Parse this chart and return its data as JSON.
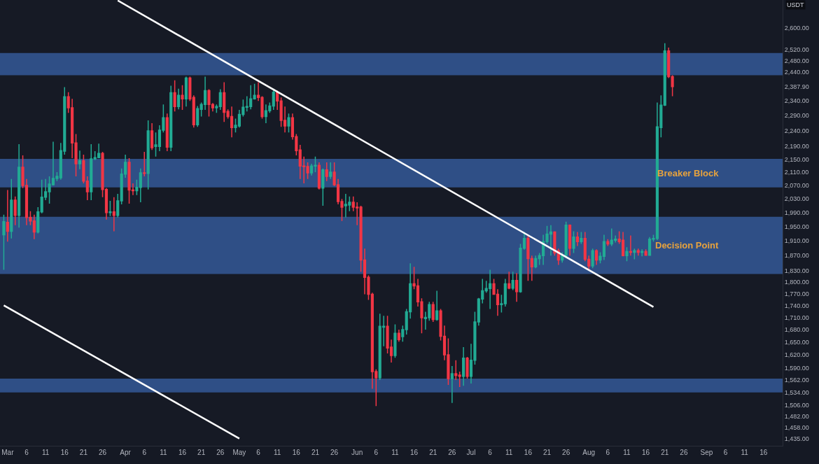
{
  "chart_data": {
    "type": "candlestick",
    "ylabel": "USDT",
    "log": "y",
    "xlim": [
      "--02-27",
      "--09-21"
    ],
    "xticks": [
      {
        "value": "--03-01",
        "label": "Mar"
      },
      {
        "value": "--03-06",
        "label": "6"
      },
      {
        "value": "--03-11",
        "label": "11"
      },
      {
        "value": "--03-16",
        "label": "16"
      },
      {
        "value": "--03-21",
        "label": "21"
      },
      {
        "value": "--03-26",
        "label": "26"
      },
      {
        "value": "--04-01",
        "label": "Apr"
      },
      {
        "value": "--04-06",
        "label": "6"
      },
      {
        "value": "--04-11",
        "label": "11"
      },
      {
        "value": "--04-16",
        "label": "16"
      },
      {
        "value": "--04-21",
        "label": "21"
      },
      {
        "value": "--04-26",
        "label": "26"
      },
      {
        "value": "--05-01",
        "label": "May"
      },
      {
        "value": "--05-06",
        "label": "6"
      },
      {
        "value": "--05-11",
        "label": "11"
      },
      {
        "value": "--05-16",
        "label": "16"
      },
      {
        "value": "--05-21",
        "label": "21"
      },
      {
        "value": "--05-26",
        "label": "26"
      },
      {
        "value": "--06-01",
        "label": "Jun"
      },
      {
        "value": "--06-06",
        "label": "6"
      },
      {
        "value": "--06-11",
        "label": "11"
      },
      {
        "value": "--06-16",
        "label": "16"
      },
      {
        "value": "--06-21",
        "label": "21"
      },
      {
        "value": "--06-26",
        "label": "26"
      },
      {
        "value": "--07-01",
        "label": "Jul"
      },
      {
        "value": "--07-06",
        "label": "6"
      },
      {
        "value": "--07-11",
        "label": "11"
      },
      {
        "value": "--07-16",
        "label": "16"
      },
      {
        "value": "--07-21",
        "label": "21"
      },
      {
        "value": "--07-26",
        "label": "26"
      },
      {
        "value": "--08-01",
        "label": "Aug"
      },
      {
        "value": "--08-06",
        "label": "6"
      },
      {
        "value": "--08-11",
        "label": "11"
      },
      {
        "value": "--08-16",
        "label": "16"
      },
      {
        "value": "--08-21",
        "label": "21"
      },
      {
        "value": "--08-26",
        "label": "26"
      },
      {
        "value": "--09-01",
        "label": "Sep"
      },
      {
        "value": "--09-06",
        "label": "6"
      },
      {
        "value": "--09-11",
        "label": "11"
      },
      {
        "value": "--09-16",
        "label": "16"
      }
    ],
    "ylim": [
      1420,
      2707
    ],
    "yticks": [
      {
        "value": 2600,
        "label": "2,600.00"
      },
      {
        "value": 2520,
        "label": "2,520.00"
      },
      {
        "value": 2480,
        "label": "2,480.00"
      },
      {
        "value": 2440,
        "label": "2,440.00"
      },
      {
        "value": 2387.9,
        "label": "2,387.90"
      },
      {
        "value": 2340,
        "label": "2,340.00"
      },
      {
        "value": 2290,
        "label": "2,290.00"
      },
      {
        "value": 2240,
        "label": "2,240.00"
      },
      {
        "value": 2190,
        "label": "2,190.00"
      },
      {
        "value": 2150,
        "label": "2,150.00"
      },
      {
        "value": 2110,
        "label": "2,110.00"
      },
      {
        "value": 2070,
        "label": "2,070.00"
      },
      {
        "value": 2030,
        "label": "2,030.00"
      },
      {
        "value": 1990,
        "label": "1,990.00"
      },
      {
        "value": 1950,
        "label": "1,950.00"
      },
      {
        "value": 1910,
        "label": "1,910.00"
      },
      {
        "value": 1870,
        "label": "1,870.00"
      },
      {
        "value": 1830,
        "label": "1,830.00"
      },
      {
        "value": 1800,
        "label": "1,800.00"
      },
      {
        "value": 1770,
        "label": "1,770.00"
      },
      {
        "value": 1740,
        "label": "1,740.00"
      },
      {
        "value": 1710,
        "label": "1,710.00"
      },
      {
        "value": 1680,
        "label": "1,680.00"
      },
      {
        "value": 1650,
        "label": "1,650.00"
      },
      {
        "value": 1620,
        "label": "1,620.00"
      },
      {
        "value": 1590,
        "label": "1,590.00"
      },
      {
        "value": 1562,
        "label": "1,562.00"
      },
      {
        "value": 1534,
        "label": "1,534.00"
      },
      {
        "value": 1506,
        "label": "1,506.00"
      },
      {
        "value": 1482,
        "label": "1,482.00"
      },
      {
        "value": 1458,
        "label": "1,458.00"
      },
      {
        "value": 1435,
        "label": "1,435.00"
      }
    ],
    "bands": [
      {
        "axis": "y",
        "from": 2428,
        "to": 2507,
        "color": "#2f4f86"
      },
      {
        "axis": "y",
        "from": 2064,
        "to": 2151,
        "label": "Breaker Block",
        "color": "#2f4f86"
      },
      {
        "axis": "y",
        "from": 1821,
        "to": 1978,
        "label": "Decision Point",
        "color": "#2f4f86"
      },
      {
        "axis": "y",
        "from": 1534,
        "to": 1565,
        "color": "#2f4f86"
      }
    ],
    "series": [
      {
        "type": "candlestick",
        "colors": [
          "#22ab94",
          "#f23645",
          "#22ab94",
          "#f23645",
          "#22ab94",
          "#f23645",
          "#f23645",
          "#f23645",
          "#f23645",
          "#22ab94",
          "#22ab94",
          "#22ab94",
          "#22ab94",
          "#22ab94",
          "#22ab94",
          "#22ab94",
          "#22ab94",
          "#f23645",
          "#f23645",
          "#f23645",
          "#22ab94",
          "#f23645",
          "#f23645",
          "#22ab94",
          "#22ab94",
          "#22ab94",
          "#f23645",
          "#f23645",
          "#22ab94",
          "#f23645",
          "#22ab94",
          "#22ab94",
          "#22ab94",
          "#f23645",
          "#f23645",
          "#22ab94",
          "#22ab94",
          "#f23645",
          "#22ab94",
          "#f23645",
          "#22ab94",
          "#22ab94",
          "#22ab94",
          "#f23645",
          "#22ab94",
          "#f23645",
          "#22ab94",
          "#f23645",
          "#22ab94",
          "#f23645",
          "#f23645",
          "#22ab94",
          "#22ab94",
          "#22ab94",
          "#f23645",
          "#f23645",
          "#22ab94",
          "#22ab94",
          "#f23645",
          "#f23645",
          "#f23645",
          "#22ab94",
          "#22ab94",
          "#22ab94",
          "#22ab94",
          "#22ab94",
          "#22ab94",
          "#f23645",
          "#f23645",
          "#22ab94",
          "#22ab94",
          "#22ab94",
          "#f23645",
          "#f23645",
          "#f23645",
          "#22ab94",
          "#f23645",
          "#f23645",
          "#f23645",
          "#f23645",
          "#f23645",
          "#22ab94",
          "#22ab94",
          "#f23645",
          "#22ab94",
          "#f23645",
          "#22ab94",
          "#f23645",
          "#f23645",
          "#f23645",
          "#22ab94",
          "#22ab94",
          "#f23645",
          "#f23645",
          "#f23645",
          "#f23645",
          "#f23645",
          "#f23645",
          "#f23645",
          "#22ab94",
          "#22ab94",
          "#f23645",
          "#f23645",
          "#22ab94",
          "#f23645",
          "#22ab94",
          "#22ab94",
          "#22ab94",
          "#f23645",
          "#f23645",
          "#f23645",
          "#22ab94",
          "#22ab94",
          "#f23645",
          "#22ab94",
          "#f23645",
          "#f23645",
          "#f23645",
          "#22ab94",
          "#f23645",
          "#f23645",
          "#22ab94",
          "#f23645",
          "#22ab94",
          "#22ab94",
          "#22ab94",
          "#22ab94",
          "#22ab94",
          "#22ab94",
          "#f23645",
          "#f23645",
          "#22ab94",
          "#22ab94",
          "#f23645",
          "#22ab94",
          "#f23645",
          "#22ab94",
          "#22ab94",
          "#f23645",
          "#f23645",
          "#22ab94",
          "#22ab94",
          "#22ab94",
          "#22ab94",
          "#22ab94",
          "#f23645",
          "#f23645",
          "#22ab94",
          "#22ab94",
          "#f23645",
          "#22ab94",
          "#f23645",
          "#22ab94",
          "#f23645",
          "#f23645",
          "#22ab94",
          "#f23645",
          "#22ab94",
          "#22ab94",
          "#f23645",
          "#22ab94",
          "#22ab94",
          "#f23645",
          "#f23645",
          "#22ab94",
          "#f23645",
          "#22ab94",
          "#f23645",
          "#22ab94",
          "#f23645",
          "#22ab94",
          "#22ab94",
          "#22ab94",
          "#22ab94",
          "#22ab94",
          "#f23645",
          "#f23645"
        ],
        "x": [
          "--02-28",
          "--03-01",
          "--03-02",
          "--03-03",
          "--03-04",
          "--03-05",
          "--03-06",
          "--03-07",
          "--03-08",
          "--03-09",
          "--03-10",
          "--03-11",
          "--03-12",
          "--03-13",
          "--03-14",
          "--03-15",
          "--03-16",
          "--03-17",
          "--03-18",
          "--03-19",
          "--03-20",
          "--03-21",
          "--03-22",
          "--03-23",
          "--03-24",
          "--03-25",
          "--03-26",
          "--03-27",
          "--03-28",
          "--03-29",
          "--03-30",
          "--03-31",
          "--04-01",
          "--04-02",
          "--04-03",
          "--04-04",
          "--04-05",
          "--04-06",
          "--04-07",
          "--04-08",
          "--04-09",
          "--04-10",
          "--04-11",
          "--04-12",
          "--04-13",
          "--04-14",
          "--04-15",
          "--04-16",
          "--04-17",
          "--04-18",
          "--04-19",
          "--04-20",
          "--04-21",
          "--04-22",
          "--04-23",
          "--04-24",
          "--04-25",
          "--04-26",
          "--04-27",
          "--04-28",
          "--04-29",
          "--04-30",
          "--05-01",
          "--05-02",
          "--05-03",
          "--05-04",
          "--05-05",
          "--05-06",
          "--05-07",
          "--05-08",
          "--05-09",
          "--05-10",
          "--05-11",
          "--05-12",
          "--05-13",
          "--05-14",
          "--05-15",
          "--05-16",
          "--05-17",
          "--05-18",
          "--05-19",
          "--05-20",
          "--05-21",
          "--05-22",
          "--05-23",
          "--05-24",
          "--05-25",
          "--05-26",
          "--05-27",
          "--05-28",
          "--05-29",
          "--05-30",
          "--05-31",
          "--06-01",
          "--06-02",
          "--06-03",
          "--06-04",
          "--06-05",
          "--06-06",
          "--06-07",
          "--06-08",
          "--06-09",
          "--06-10",
          "--06-11",
          "--06-12",
          "--06-13",
          "--06-14",
          "--06-15",
          "--06-16",
          "--06-17",
          "--06-18",
          "--06-19",
          "--06-20",
          "--06-21",
          "--06-22",
          "--06-23",
          "--06-24",
          "--06-25",
          "--06-26",
          "--06-27",
          "--06-28",
          "--06-29",
          "--06-30",
          "--07-01",
          "--07-02",
          "--07-03",
          "--07-04",
          "--07-05",
          "--07-06",
          "--07-07",
          "--07-08",
          "--07-09",
          "--07-10",
          "--07-11",
          "--07-12",
          "--07-13",
          "--07-14",
          "--07-15",
          "--07-16",
          "--07-17",
          "--07-18",
          "--07-19",
          "--07-20",
          "--07-21",
          "--07-22",
          "--07-23",
          "--07-24",
          "--07-25",
          "--07-26",
          "--07-27",
          "--07-28",
          "--07-29",
          "--07-30",
          "--07-31",
          "--08-01",
          "--08-02",
          "--08-03",
          "--08-04",
          "--08-05",
          "--08-06",
          "--08-07",
          "--08-08",
          "--08-09",
          "--08-10",
          "--08-11",
          "--08-12",
          "--08-13",
          "--08-14",
          "--08-15",
          "--08-16",
          "--08-17",
          "--08-18",
          "--08-19",
          "--08-20",
          "--08-21",
          "--08-22",
          "--08-23"
        ],
        "ohlc": [
          [
            1927,
            1984,
            1832,
            1964
          ],
          [
            1962,
            2056,
            1908,
            1937
          ],
          [
            1937,
            2089,
            1917,
            2026
          ],
          [
            2026,
            2037,
            1954,
            1982
          ],
          [
            1982,
            2197,
            1947,
            2125
          ],
          [
            2125,
            2162,
            2062,
            2070
          ],
          [
            2070,
            2089,
            1954,
            1976
          ],
          [
            1976,
            1994,
            1954,
            1966
          ],
          [
            1966,
            1984,
            1915,
            1935
          ],
          [
            1935,
            2006,
            1931,
            1992
          ],
          [
            1992,
            2087,
            1988,
            2035
          ],
          [
            2035,
            2089,
            2026,
            2051
          ],
          [
            2051,
            2097,
            2016,
            2074
          ],
          [
            2072,
            2205,
            2070,
            2091
          ],
          [
            2091,
            2110,
            2083,
            2097
          ],
          [
            2093,
            2201,
            2087,
            2177
          ],
          [
            2175,
            2386,
            2164,
            2353
          ],
          [
            2353,
            2369,
            2299,
            2316
          ],
          [
            2316,
            2346,
            2153,
            2201
          ],
          [
            2201,
            2230,
            2097,
            2136
          ],
          [
            2136,
            2177,
            2119,
            2145
          ],
          [
            2145,
            2164,
            2076,
            2083
          ],
          [
            2083,
            2097,
            2026,
            2051
          ],
          [
            2051,
            2197,
            2026,
            2151
          ],
          [
            2151,
            2175,
            2147,
            2155
          ],
          [
            2155,
            2199,
            2153,
            2168
          ],
          [
            2168,
            2173,
            2035,
            2058
          ],
          [
            2058,
            2062,
            1970,
            1990
          ],
          [
            1990,
            2024,
            1980,
            1992
          ],
          [
            1992,
            2035,
            1937,
            1982
          ],
          [
            1982,
            2045,
            1976,
            2024
          ],
          [
            2024,
            2121,
            2014,
            2104
          ],
          [
            2104,
            2164,
            2093,
            2140
          ],
          [
            2140,
            2153,
            2016,
            2056
          ],
          [
            2056,
            2076,
            2041,
            2054
          ],
          [
            2054,
            2087,
            2041,
            2064
          ],
          [
            2064,
            2121,
            2020,
            2108
          ],
          [
            2108,
            2173,
            2097,
            2106
          ],
          [
            2106,
            2274,
            2058,
            2240
          ],
          [
            2240,
            2265,
            2179,
            2186
          ],
          [
            2190,
            2235,
            2158,
            2195
          ],
          [
            2190,
            2258,
            2175,
            2242
          ],
          [
            2242,
            2327,
            2235,
            2283
          ],
          [
            2283,
            2297,
            2175,
            2188
          ],
          [
            2188,
            2391,
            2175,
            2367
          ],
          [
            2367,
            2410,
            2304,
            2320
          ],
          [
            2320,
            2381,
            2311,
            2358
          ],
          [
            2358,
            2393,
            2309,
            2346
          ],
          [
            2346,
            2423,
            2320,
            2418
          ],
          [
            2418,
            2423,
            2339,
            2346
          ],
          [
            2351,
            2358,
            2251,
            2260
          ],
          [
            2260,
            2322,
            2253,
            2313
          ],
          [
            2311,
            2334,
            2287,
            2327
          ],
          [
            2327,
            2423,
            2309,
            2374
          ],
          [
            2374,
            2379,
            2287,
            2327
          ],
          [
            2327,
            2332,
            2304,
            2316
          ],
          [
            2316,
            2327,
            2299,
            2320
          ],
          [
            2320,
            2379,
            2309,
            2367
          ],
          [
            2367,
            2403,
            2269,
            2301
          ],
          [
            2304,
            2311,
            2280,
            2287
          ],
          [
            2287,
            2320,
            2219,
            2251
          ],
          [
            2251,
            2280,
            2235,
            2258
          ],
          [
            2256,
            2309,
            2251,
            2294
          ],
          [
            2294,
            2344,
            2287,
            2318
          ],
          [
            2318,
            2355,
            2304,
            2320
          ],
          [
            2320,
            2393,
            2311,
            2346
          ],
          [
            2346,
            2398,
            2344,
            2358
          ],
          [
            2358,
            2403,
            2339,
            2351
          ],
          [
            2351,
            2355,
            2280,
            2287
          ],
          [
            2287,
            2327,
            2265,
            2306
          ],
          [
            2306,
            2334,
            2299,
            2322
          ],
          [
            2322,
            2381,
            2309,
            2369
          ],
          [
            2369,
            2374,
            2309,
            2339
          ],
          [
            2339,
            2351,
            2253,
            2274
          ],
          [
            2274,
            2320,
            2235,
            2256
          ],
          [
            2256,
            2297,
            2235,
            2283
          ],
          [
            2283,
            2297,
            2212,
            2221
          ],
          [
            2221,
            2230,
            2162,
            2177
          ],
          [
            2179,
            2195,
            2089,
            2129
          ],
          [
            2129,
            2158,
            2076,
            2127
          ],
          [
            2127,
            2140,
            2089,
            2108
          ],
          [
            2108,
            2136,
            2100,
            2129
          ],
          [
            2129,
            2158,
            2110,
            2131
          ],
          [
            2131,
            2140,
            2058,
            2062
          ],
          [
            2062,
            2121,
            2010,
            2117
          ],
          [
            2117,
            2140,
            2083,
            2097
          ],
          [
            2097,
            2140,
            2089,
            2110
          ],
          [
            2110,
            2140,
            2068,
            2072
          ],
          [
            2072,
            2089,
            2014,
            2022
          ],
          [
            2022,
            2030,
            1966,
            2006
          ],
          [
            2010,
            2045,
            1976,
            2014
          ],
          [
            2012,
            2037,
            1994,
            2020
          ],
          [
            2020,
            2037,
            1994,
            2006
          ],
          [
            2006,
            2020,
            1954,
            2004
          ],
          [
            2006,
            2010,
            1827,
            1858
          ],
          [
            1858,
            1889,
            1768,
            1812
          ],
          [
            1812,
            1817,
            1754,
            1768
          ],
          [
            1768,
            1772,
            1542,
            1581
          ],
          [
            1581,
            1586,
            1504,
            1567
          ],
          [
            1567,
            1719,
            1562,
            1688
          ],
          [
            1686,
            1714,
            1640,
            1688
          ],
          [
            1688,
            1714,
            1623,
            1636
          ],
          [
            1638,
            1656,
            1602,
            1618
          ],
          [
            1618,
            1693,
            1613,
            1671
          ],
          [
            1671,
            1680,
            1651,
            1656
          ],
          [
            1663,
            1690,
            1651,
            1680
          ],
          [
            1680,
            1731,
            1668,
            1724
          ],
          [
            1724,
            1849,
            1707,
            1795
          ],
          [
            1795,
            1840,
            1781,
            1790
          ],
          [
            1790,
            1808,
            1737,
            1749
          ],
          [
            1749,
            1758,
            1671,
            1709
          ],
          [
            1707,
            1724,
            1680,
            1710
          ],
          [
            1709,
            1749,
            1702,
            1742
          ],
          [
            1742,
            1749,
            1699,
            1705
          ],
          [
            1705,
            1777,
            1702,
            1726
          ],
          [
            1726,
            1731,
            1654,
            1664
          ],
          [
            1664,
            1690,
            1607,
            1620
          ],
          [
            1620,
            1659,
            1551,
            1565
          ],
          [
            1565,
            1594,
            1511,
            1576
          ],
          [
            1576,
            1607,
            1562,
            1572
          ],
          [
            1573,
            1581,
            1546,
            1570
          ],
          [
            1570,
            1638,
            1549,
            1612
          ],
          [
            1612,
            1615,
            1565,
            1570
          ],
          [
            1570,
            1646,
            1554,
            1607
          ],
          [
            1607,
            1724,
            1597,
            1699
          ],
          [
            1699,
            1759,
            1690,
            1756
          ],
          [
            1756,
            1808,
            1745,
            1777
          ],
          [
            1777,
            1803,
            1772,
            1783
          ],
          [
            1783,
            1832,
            1731,
            1795
          ],
          [
            1795,
            1808,
            1767,
            1768
          ],
          [
            1768,
            1781,
            1714,
            1742
          ],
          [
            1742,
            1767,
            1722,
            1744
          ],
          [
            1744,
            1808,
            1737,
            1795
          ],
          [
            1795,
            1827,
            1781,
            1784
          ],
          [
            1784,
            1827,
            1779,
            1804
          ],
          [
            1804,
            1823,
            1749,
            1775
          ],
          [
            1775,
            1902,
            1772,
            1890
          ],
          [
            1890,
            1935,
            1886,
            1917
          ],
          [
            1917,
            1925,
            1803,
            1862
          ],
          [
            1862,
            1870,
            1803,
            1840
          ],
          [
            1840,
            1870,
            1836,
            1862
          ],
          [
            1862,
            1877,
            1845,
            1870
          ],
          [
            1870,
            1927,
            1845,
            1908
          ],
          [
            1908,
            1952,
            1902,
            1929
          ],
          [
            1929,
            1954,
            1870,
            1935
          ],
          [
            1935,
            1937,
            1870,
            1877
          ],
          [
            1883,
            1889,
            1845,
            1858
          ],
          [
            1858,
            1879,
            1851,
            1871
          ],
          [
            1871,
            1964,
            1864,
            1954
          ],
          [
            1954,
            1956,
            1870,
            1890
          ],
          [
            1890,
            1937,
            1877,
            1921
          ],
          [
            1921,
            1935,
            1896,
            1908
          ],
          [
            1908,
            1935,
            1902,
            1917
          ],
          [
            1917,
            1935,
            1855,
            1860
          ],
          [
            1860,
            1870,
            1832,
            1842
          ],
          [
            1842,
            1889,
            1836,
            1883
          ],
          [
            1883,
            1887,
            1845,
            1858
          ],
          [
            1858,
            1879,
            1849,
            1868
          ],
          [
            1868,
            1927,
            1858,
            1908
          ],
          [
            1908,
            1915,
            1896,
            1902
          ],
          [
            1902,
            1945,
            1896,
            1912
          ],
          [
            1912,
            1925,
            1906,
            1915
          ],
          [
            1915,
            1937,
            1902,
            1908
          ],
          [
            1912,
            1935,
            1868,
            1870
          ],
          [
            1870,
            1893,
            1855,
            1881
          ],
          [
            1881,
            1925,
            1870,
            1879
          ],
          [
            1879,
            1889,
            1860,
            1883
          ],
          [
            1883,
            1889,
            1870,
            1879
          ],
          [
            1879,
            1887,
            1868,
            1881
          ],
          [
            1881,
            1887,
            1870,
            1871
          ],
          [
            1871,
            1921,
            1870,
            1915
          ],
          [
            1915,
            1927,
            1908,
            1917
          ],
          [
            1917,
            2334,
            1912,
            2253
          ],
          [
            2251,
            2358,
            2219,
            2325
          ],
          [
            2325,
            2543,
            2322,
            2515
          ],
          [
            2515,
            2527,
            2418,
            2423
          ],
          [
            2423,
            2428,
            2355,
            2388
          ]
        ]
      },
      {
        "type": "line",
        "color": "#ffffff",
        "x": [
          "--03-30",
          "--08-18"
        ],
        "values": [
          2705,
          1736
        ]
      },
      {
        "type": "line",
        "color": "#ffffff",
        "x": [
          "--02-28",
          "--05-01"
        ],
        "values": [
          1740,
          1435
        ]
      }
    ]
  }
}
